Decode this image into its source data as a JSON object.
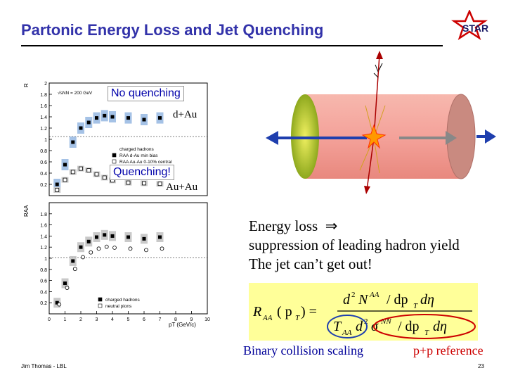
{
  "slide": {
    "title": "Partonic Energy Loss and Jet Quenching",
    "logo_text": "STAR",
    "footer_author": "Jim Thomas - LBL",
    "page_number": "23"
  },
  "plot": {
    "callouts": {
      "no_quenching": "No quenching",
      "quenching": "Quenching!",
      "dau": "d+Au",
      "auau": "Au+Au"
    },
    "top_panel": {
      "ylabel": "R",
      "yticks": [
        "0.2",
        "0.4",
        "0.6",
        "0.8",
        "1",
        "1.2",
        "1.4",
        "1.6",
        "1.8",
        "2"
      ],
      "energy_label": "√sNN = 200 GeV",
      "legend": [
        "charged hadrons",
        "RAA d-Au min bias",
        "RAA Au-Au 0-10% central"
      ]
    },
    "bottom_panel": {
      "ylabel": "RAA",
      "yticks": [
        "0.2",
        "0.4",
        "0.6",
        "0.8",
        "1",
        "1.2",
        "1.4",
        "1.6",
        "1.8"
      ],
      "xticks": [
        "0",
        "1",
        "2",
        "3",
        "4",
        "5",
        "6",
        "7",
        "8",
        "9",
        "10"
      ],
      "xlabel": "pT (GeV/c)",
      "legend": [
        "charged hadrons",
        "neutral pions"
      ]
    },
    "chart_data": {
      "type": "scatter",
      "series": [
        {
          "name": "RAA d-Au min bias",
          "x": [
            0.5,
            1,
            1.5,
            2,
            2.5,
            3,
            3.5,
            4,
            5,
            6,
            7
          ],
          "y": [
            0.2,
            0.55,
            0.95,
            1.2,
            1.3,
            1.38,
            1.42,
            1.4,
            1.38,
            1.35,
            1.38
          ]
        },
        {
          "name": "RAA Au-Au 0-10% central",
          "x": [
            0.5,
            1,
            1.5,
            2,
            2.5,
            3,
            3.5,
            4,
            5,
            6,
            7,
            8
          ],
          "y": [
            0.1,
            0.28,
            0.42,
            0.48,
            0.45,
            0.38,
            0.32,
            0.27,
            0.23,
            0.22,
            0.21,
            0.2
          ]
        }
      ]
    }
  },
  "text": {
    "energy_loss_line1": "Energy loss",
    "energy_loss_line2": "suppression of leading hadron yield",
    "energy_loss_line3": "The jet can’t get out!",
    "binary_scaling": "Binary collision scaling",
    "pp_reference": "p+p reference"
  },
  "formula": {
    "lhs_R": "R",
    "lhs_sub": "AA",
    "lhs_arg": "( p",
    "lhs_arg_sub": "T",
    "lhs_arg_close": ") =",
    "num_d": "d",
    "num_exp": "2",
    "num_N": "N",
    "num_N_sup": "AA",
    "num_rest": "/ dp",
    "num_rest_sub": "T",
    "num_end": "dη",
    "den_T": "T",
    "den_T_sub": "AA",
    "den_d": "d",
    "den_exp": "2",
    "den_sigma": "σ",
    "den_sigma_sup": "NN",
    "den_rest": "/ dp",
    "den_rest_sub": "T",
    "den_end": "dη"
  },
  "colors": {
    "title": "#3333aa",
    "formula_bg": "#ffff99",
    "binary_label": "#000099",
    "pp_label": "#cc0000",
    "cylinder": "#f4a29a"
  }
}
